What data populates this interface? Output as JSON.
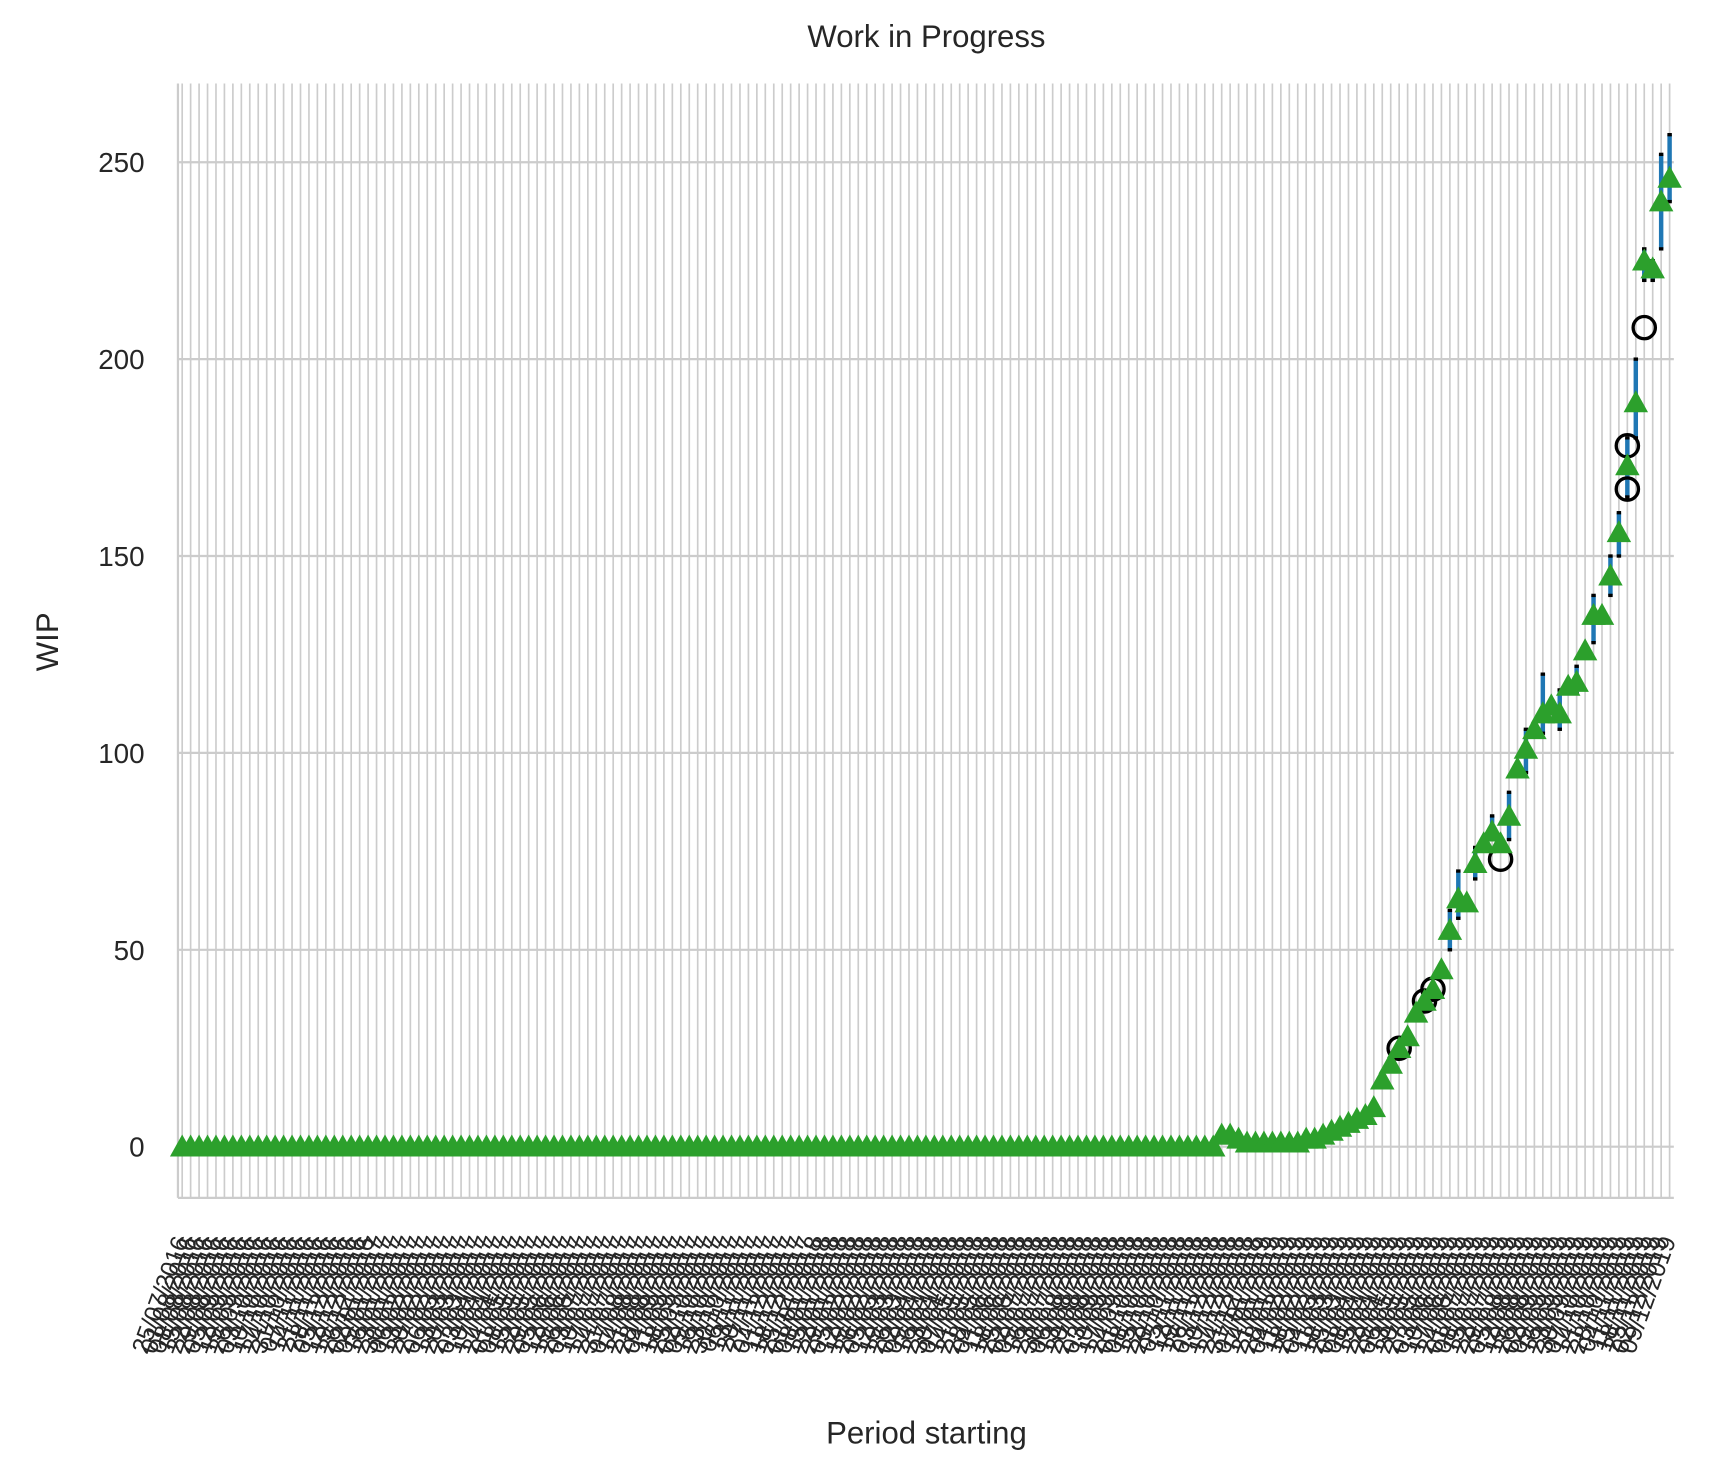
{
  "chart_data": {
    "type": "box",
    "title": "Work in Progress",
    "x_label": "Period starting",
    "y_label": "WIP",
    "grid": true,
    "ylim": [
      -13,
      270
    ],
    "yticks": [
      0,
      50,
      100,
      150,
      200,
      250
    ],
    "color": "#2ca02c",
    "whisker_color": "#1f77b4",
    "flier_color": "#000000",
    "categories": [
      "25/07/2016",
      "01/08/2016",
      "08/08/2016",
      "15/08/2016",
      "22/08/2016",
      "29/08/2016",
      "05/09/2016",
      "12/09/2016",
      "19/09/2016",
      "26/09/2016",
      "03/10/2016",
      "10/10/2016",
      "17/10/2016",
      "24/10/2016",
      "31/10/2016",
      "07/11/2016",
      "14/11/2016",
      "21/11/2016",
      "28/11/2016",
      "05/12/2016",
      "12/12/2016",
      "19/12/2016",
      "26/12/2016",
      "02/01/2017",
      "09/01/2017",
      "16/01/2017",
      "23/01/2017",
      "30/01/2017",
      "06/02/2017",
      "13/02/2017",
      "20/02/2017",
      "27/02/2017",
      "06/03/2017",
      "13/03/2017",
      "20/03/2017",
      "27/03/2017",
      "03/04/2017",
      "10/04/2017",
      "17/04/2017",
      "24/04/2017",
      "01/05/2017",
      "08/05/2017",
      "15/05/2017",
      "22/05/2017",
      "29/05/2017",
      "05/06/2017",
      "12/06/2017",
      "19/06/2017",
      "26/06/2017",
      "03/07/2017",
      "10/07/2017",
      "17/07/2017",
      "24/07/2017",
      "31/07/2017",
      "07/08/2017",
      "14/08/2017",
      "21/08/2017",
      "28/08/2017",
      "04/09/2017",
      "11/09/2017",
      "18/09/2017",
      "25/09/2017",
      "02/10/2017",
      "09/10/2017",
      "16/10/2017",
      "23/10/2017",
      "30/10/2017",
      "06/11/2017",
      "13/11/2017",
      "20/11/2017",
      "27/11/2017",
      "04/12/2017",
      "11/12/2017",
      "18/12/2017",
      "25/12/2017",
      "01/01/2018",
      "08/01/2018",
      "15/01/2018",
      "22/01/2018",
      "29/01/2018",
      "05/02/2018",
      "12/02/2018",
      "19/02/2018",
      "26/02/2018",
      "05/03/2018",
      "12/03/2018",
      "19/03/2018",
      "26/03/2018",
      "02/04/2018",
      "09/04/2018",
      "16/04/2018",
      "23/04/2018",
      "30/04/2018",
      "07/05/2018",
      "14/05/2018",
      "21/05/2018",
      "28/05/2018",
      "04/06/2018",
      "11/06/2018",
      "18/06/2018",
      "25/06/2018",
      "02/07/2018",
      "09/07/2018",
      "16/07/2018",
      "23/07/2018",
      "30/07/2018",
      "06/08/2018",
      "13/08/2018",
      "20/08/2018",
      "27/08/2018",
      "03/09/2018",
      "10/09/2018",
      "17/09/2018",
      "24/09/2018",
      "01/10/2018",
      "08/10/2018",
      "15/10/2018",
      "22/10/2018",
      "29/10/2018",
      "05/11/2018",
      "12/11/2018",
      "19/11/2018",
      "26/11/2018",
      "03/12/2018",
      "10/12/2018",
      "17/12/2018",
      "24/12/2018",
      "31/12/2018",
      "07/01/2019",
      "14/01/2019",
      "21/01/2019",
      "28/01/2019",
      "04/02/2019",
      "11/02/2019",
      "18/02/2019",
      "25/02/2019",
      "04/03/2019",
      "11/03/2019",
      "18/03/2019",
      "25/03/2019",
      "01/04/2019",
      "08/04/2019",
      "15/04/2019",
      "22/04/2019",
      "29/04/2019",
      "06/05/2019",
      "13/05/2019",
      "20/05/2019",
      "27/05/2019",
      "03/06/2019",
      "10/06/2019",
      "17/06/2019",
      "24/06/2019",
      "01/07/2019",
      "08/07/2019",
      "15/07/2019",
      "22/07/2019",
      "29/07/2019",
      "05/08/2019",
      "12/08/2019",
      "19/08/2019",
      "26/08/2019",
      "02/09/2019",
      "09/09/2019",
      "16/09/2019",
      "23/09/2019",
      "30/09/2019",
      "07/10/2019",
      "14/10/2019",
      "21/10/2019",
      "28/10/2019",
      "04/11/2019",
      "11/11/2019",
      "18/11/2019",
      "25/11/2019",
      "02/12/2019",
      "09/12/2019"
    ],
    "values": [
      0,
      0,
      0,
      0,
      0,
      0,
      0,
      0,
      0,
      0,
      0,
      0,
      0,
      0,
      0,
      0,
      0,
      0,
      0,
      0,
      0,
      0,
      0,
      0,
      0,
      0,
      0,
      0,
      0,
      0,
      0,
      0,
      0,
      0,
      0,
      0,
      0,
      0,
      0,
      0,
      0,
      0,
      0,
      0,
      0,
      0,
      0,
      0,
      0,
      0,
      0,
      0,
      0,
      0,
      0,
      0,
      0,
      0,
      0,
      0,
      0,
      0,
      0,
      0,
      0,
      0,
      0,
      0,
      0,
      0,
      0,
      0,
      0,
      0,
      0,
      0,
      0,
      0,
      0,
      0,
      0,
      0,
      0,
      0,
      0,
      0,
      0,
      0,
      0,
      0,
      0,
      0,
      0,
      0,
      0,
      0,
      0,
      0,
      0,
      0,
      0,
      0,
      0,
      0,
      0,
      0,
      0,
      0,
      0,
      0,
      0,
      0,
      0,
      0,
      0,
      0,
      0,
      0,
      0,
      0,
      0,
      0,
      0,
      3,
      3,
      2,
      1,
      1,
      1,
      1,
      1,
      1,
      1,
      2,
      2,
      3,
      4,
      5,
      6,
      7,
      8,
      10,
      17,
      21,
      25,
      28,
      34,
      37,
      40,
      45,
      55,
      63,
      62,
      72,
      77,
      80,
      77,
      84,
      96,
      101,
      106,
      110,
      112,
      110,
      117,
      118,
      126,
      135,
      135,
      145,
      156,
      173,
      189,
      225,
      223,
      240,
      246
    ],
    "whiskers": [
      [
        150,
        50,
        60
      ],
      [
        151,
        58,
        70
      ],
      [
        153,
        68,
        76
      ],
      [
        155,
        78,
        84
      ],
      [
        157,
        78,
        90
      ],
      [
        159,
        95,
        106
      ],
      [
        161,
        105,
        120
      ],
      [
        163,
        106,
        116
      ],
      [
        165,
        115,
        122
      ],
      [
        167,
        128,
        140
      ],
      [
        169,
        140,
        150
      ],
      [
        170,
        150,
        161
      ],
      [
        171,
        165,
        180
      ],
      [
        172,
        180,
        200
      ],
      [
        173,
        220,
        228
      ],
      [
        174,
        220,
        225
      ],
      [
        175,
        228,
        252
      ],
      [
        176,
        240,
        257
      ]
    ],
    "fliers": [
      [
        144,
        25
      ],
      [
        147,
        37
      ],
      [
        148,
        40
      ],
      [
        156,
        73
      ],
      [
        171,
        167
      ],
      [
        171,
        178
      ],
      [
        173,
        208
      ]
    ]
  }
}
